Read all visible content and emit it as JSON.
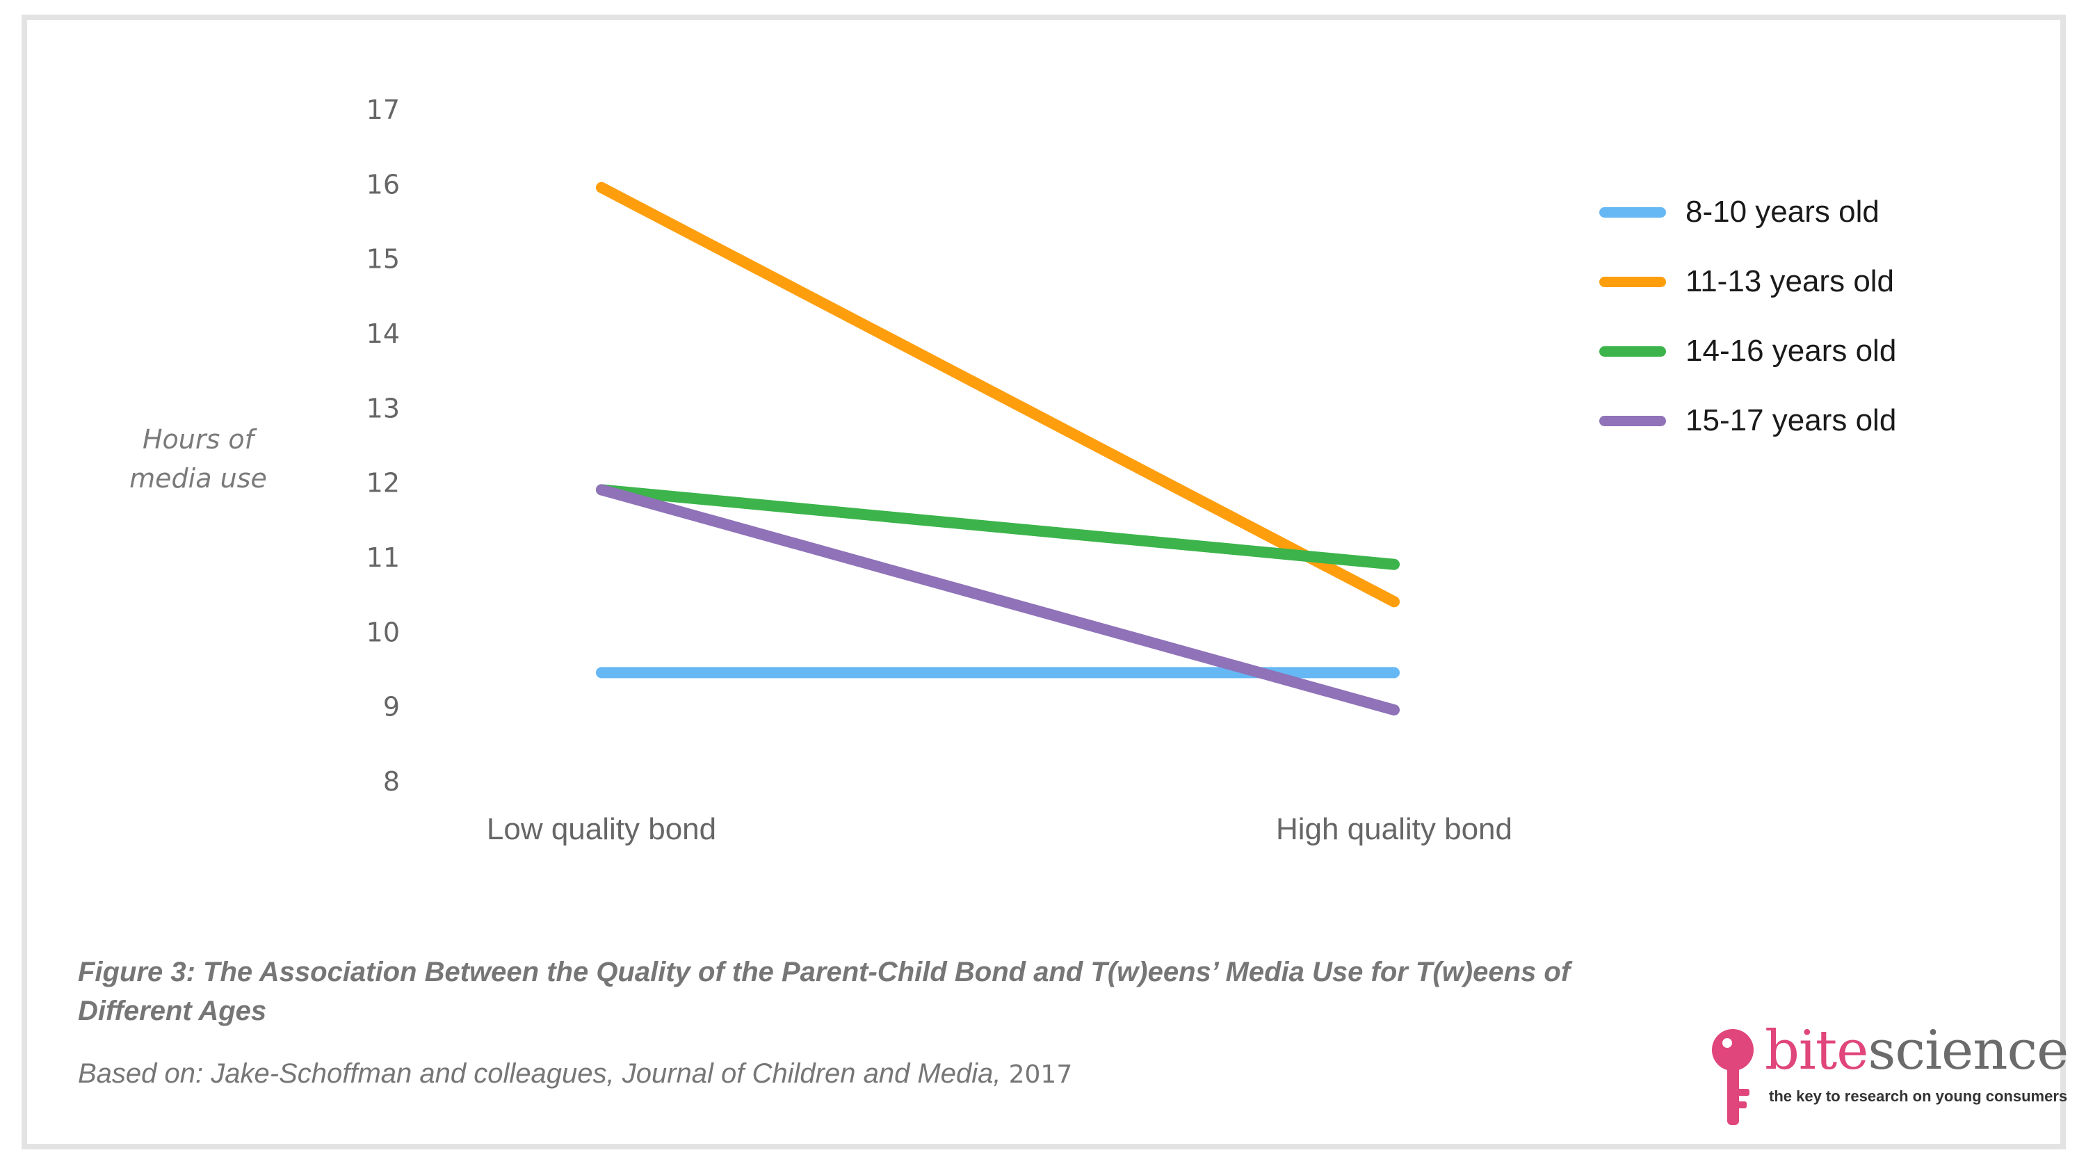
{
  "chart_data": {
    "type": "line",
    "categories": [
      "Low quality bond",
      "High quality bond"
    ],
    "ylabel": "Hours of media use",
    "ylim": [
      8,
      17
    ],
    "yticks": [
      8,
      9,
      10,
      11,
      12,
      13,
      14,
      15,
      16,
      17
    ],
    "legend_position": "top-right",
    "grid": false,
    "series": [
      {
        "name": "8-10 years old",
        "color": "#66b8f5",
        "values": [
          9.45,
          9.45
        ]
      },
      {
        "name": "11-13 years old",
        "color": "#ff9e0d",
        "values": [
          15.95,
          10.4
        ]
      },
      {
        "name": "14-16 years old",
        "color": "#3cb44b",
        "values": [
          11.9,
          10.9
        ]
      },
      {
        "name": "15-17 years old",
        "color": "#8f72b8",
        "values": [
          11.9,
          8.95
        ]
      }
    ]
  },
  "caption": {
    "figure": "Figure 3: The Association Between the Quality of the Parent-Child Bond and T(w)eens’ Media Use for T(w)eens of Different Ages",
    "source_text": "Based on: Jake-Schoffman and colleagues, Journal of Children and Media,",
    "source_year": "2017"
  },
  "logo": {
    "word_part1": "bite",
    "word_part2": "science",
    "tagline": "the key to research on young consumers",
    "icon": "key-icon",
    "accent_color": "#e0457b"
  }
}
